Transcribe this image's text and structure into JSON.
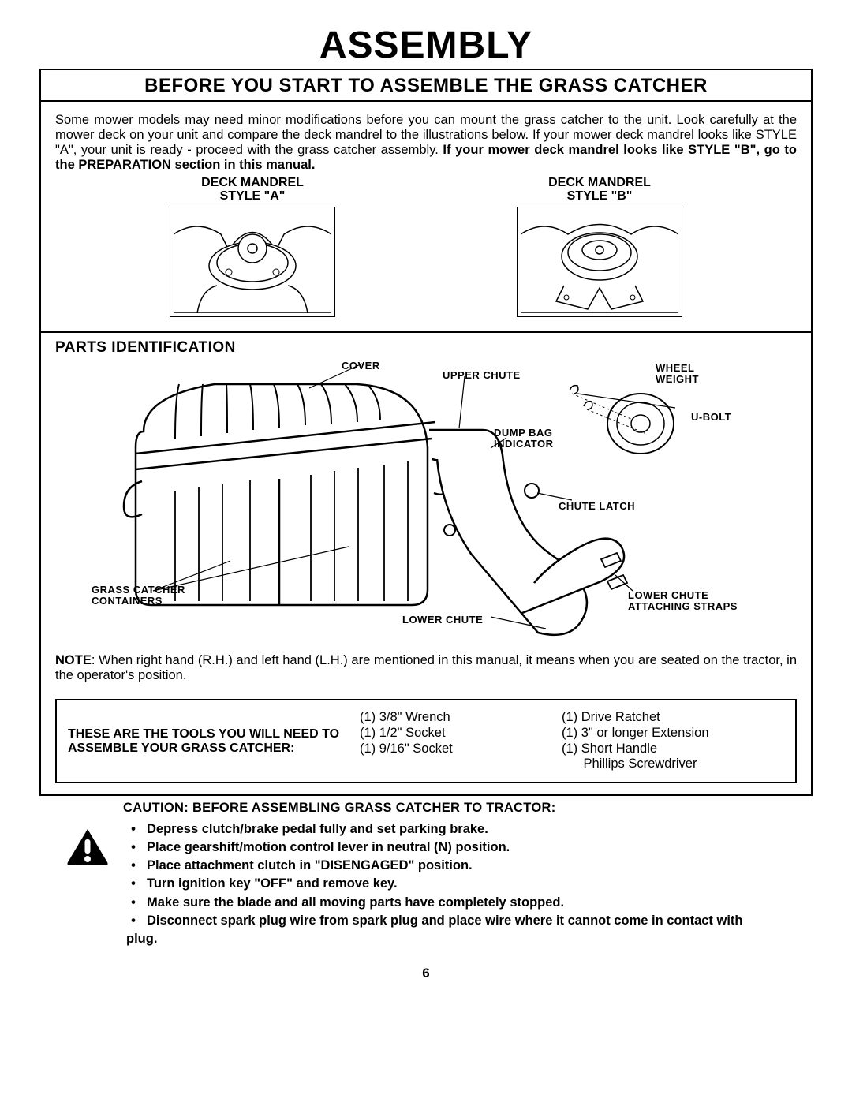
{
  "page_title": "ASSEMBLY",
  "page_number": "6",
  "section_heading": "BEFORE YOU START TO ASSEMBLE THE GRASS CATCHER",
  "intro": {
    "para": "Some mower models may need minor modifications before you can mount the grass catcher to the unit.  Look carefully at the mower deck on your unit and compare the deck mandrel to the illustrations below.  If your mower deck mandrel looks like STYLE \"A\", your unit is ready - proceed with the grass catcher assembly.  ",
    "bold_tail": "If your mower deck mandrel looks like STYLE \"B\", go to the PREPARATION section in this manual."
  },
  "mandrel_a_label_1": "DECK MANDREL",
  "mandrel_a_label_2": "STYLE \"A\"",
  "mandrel_b_label_1": "DECK MANDREL",
  "mandrel_b_label_2": "STYLE \"B\"",
  "parts_heading": "PARTS  IDENTIFICATION",
  "callouts": {
    "cover": "COVER",
    "upper_chute": "UPPER  CHUTE",
    "wheel_weight": "WHEEL WEIGHT",
    "ubolt": "U-BOLT",
    "dump_bag_indicator": "DUMP BAG INDICATOR",
    "chute_latch": "CHUTE  LATCH",
    "grass_catcher_containers": "GRASS CATCHER CONTAINERS",
    "lower_chute": "LOWER  CHUTE",
    "lower_chute_straps": "LOWER  CHUTE ATTACHING STRAPS"
  },
  "note_prefix": "NOTE",
  "note_text": ": When right hand (R.H.) and left hand (L.H.) are mentioned in this manual, it means when you are seated on the tractor, in the operator's position.",
  "tools_label": "THESE ARE THE TOOLS YOU WILL NEED TO ASSEMBLE YOUR GRASS CATCHER:",
  "tools_col1": [
    "(1) 3/8\" Wrench",
    "(1) 1/2\" Socket",
    "(1) 9/16\" Socket"
  ],
  "tools_col2": [
    "(1) Drive Ratchet",
    "(1) 3\" or longer Extension",
    "(1) Short Handle",
    "      Phillips Screwdriver"
  ],
  "caution_head": "CAUTION: BEFORE ASSEMBLING GRASS CATCHER TO TRACTOR:",
  "caution_items": [
    "Depress clutch/brake pedal fully and set parking brake.",
    "Place gearshift/motion control lever in neutral (N) position.",
    "Place attachment clutch in \"DISENGAGED\" position.",
    "Turn ignition key \"OFF\" and remove key.",
    "Make sure the blade and all moving parts have completely stopped.",
    "Disconnect spark plug wire from spark plug and place wire where it cannot come in contact with plug."
  ],
  "colors": {
    "text": "#000000",
    "bg": "#ffffff",
    "border": "#000000"
  }
}
